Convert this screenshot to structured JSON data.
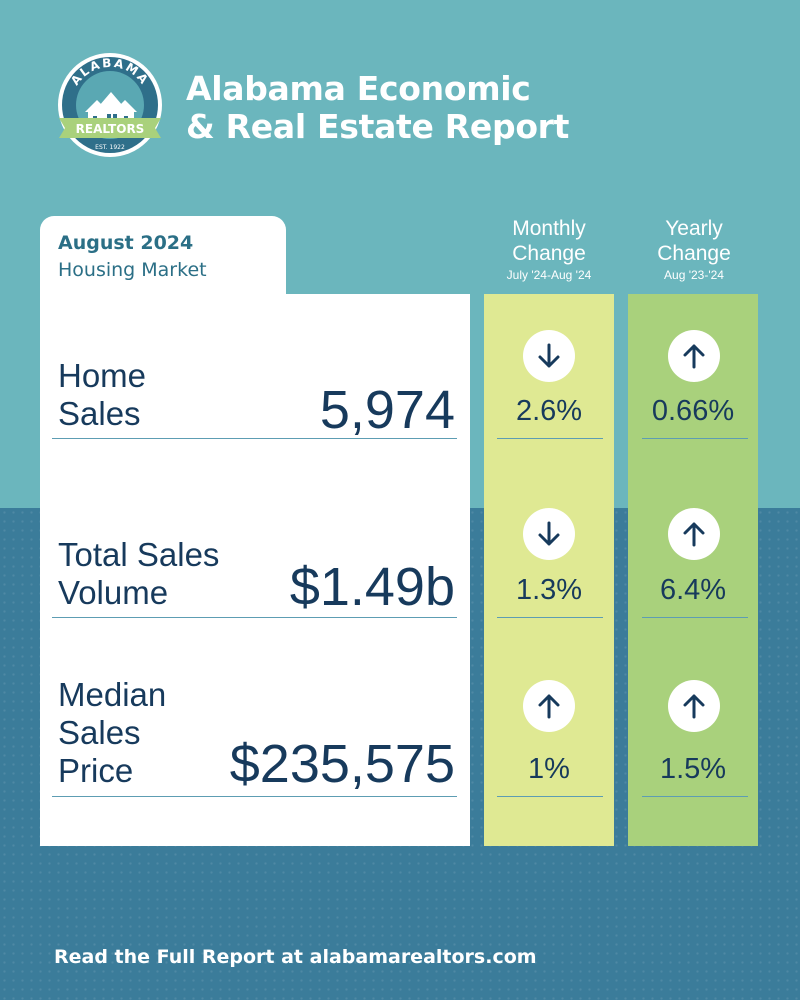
{
  "logo": {
    "top_text": "ALABAMA",
    "banner_text": "REALTORS",
    "est_text": "EST. 1922"
  },
  "header": {
    "title_line1": "Alabama Economic",
    "title_line2": "& Real Estate Report"
  },
  "card": {
    "month": "August 2024",
    "subtitle": "Housing Market"
  },
  "columns": {
    "monthly": {
      "title_line1": "Monthly",
      "title_line2": "Change",
      "range": "July '24-Aug '24"
    },
    "yearly": {
      "title_line1": "Yearly",
      "title_line2": "Change",
      "range": "Aug '23-'24"
    }
  },
  "rows": [
    {
      "label_line1": "Home",
      "label_line2": "Sales",
      "label_line3": "",
      "value": "5,974",
      "monthly": {
        "direction": "down",
        "percent": "2.6%"
      },
      "yearly": {
        "direction": "up",
        "percent": "0.66%"
      }
    },
    {
      "label_line1": "Total Sales",
      "label_line2": "Volume",
      "label_line3": "",
      "value": "$1.49b",
      "monthly": {
        "direction": "down",
        "percent": "1.3%"
      },
      "yearly": {
        "direction": "up",
        "percent": "6.4%"
      }
    },
    {
      "label_line1": "Median",
      "label_line2": "Sales",
      "label_line3": "Price",
      "value": "$235,575",
      "monthly": {
        "direction": "up",
        "percent": "1%"
      },
      "yearly": {
        "direction": "up",
        "percent": "1.5%"
      }
    }
  ],
  "footer": {
    "text": "Read the Full Report at alabamarealtors.com"
  },
  "colors": {
    "background_top": "#6bb6bd",
    "background_bottom": "#3b7c9a",
    "text_dark": "#173a5c",
    "monthly_column": "#dfe993",
    "yearly_column": "#a9d17c"
  }
}
